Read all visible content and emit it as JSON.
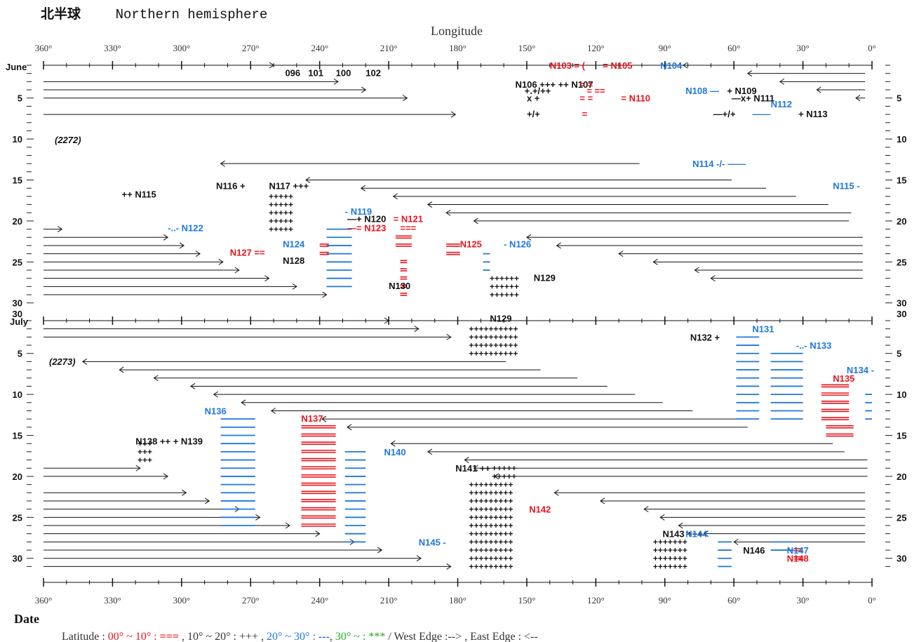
{
  "header": {
    "title_cjk": "北半球",
    "title_en": "Northern hemisphere"
  },
  "axes": {
    "longitude_title": "Longitude",
    "date_title": "Date",
    "lon_ticks": [
      "360°",
      "330°",
      "300°",
      "270°",
      "240°",
      "210°",
      "180°",
      "150°",
      "120°",
      "90°",
      "60°",
      "30°",
      "0°"
    ],
    "day_ticks": [
      "5",
      "10",
      "15",
      "20",
      "25",
      "30"
    ],
    "month_june": "June",
    "month_july": "July",
    "june_30": "30"
  },
  "year_labels": [
    "(2272)",
    "(2273)"
  ],
  "legend": {
    "text": "Latitude :  00° ~ 10°  : ===  ,   10° ~ 20°  : +++ ,   20° ~ 30°  : ---,  30° ~  : ***     /     West Edge :-->  , East Edge : <--",
    "red": "#e8141e",
    "blue": "#1e78dc",
    "green": "#22aa22"
  },
  "colors": {
    "red": "#e8141e",
    "blue": "#1e78dc",
    "black": "#111111",
    "green": "#22aa22"
  },
  "chart_data": {
    "type": "diagram",
    "x_axis": {
      "name": "Longitude",
      "range": [
        360,
        0
      ],
      "step": 30
    },
    "y_axis": {
      "name": "Date",
      "periods": [
        "June 2272",
        "July 2273"
      ]
    },
    "june_arrows_east": [
      {
        "day": 1,
        "from": 360,
        "to": 260
      },
      {
        "day": 3,
        "from": 360,
        "to": 232
      },
      {
        "day": 4,
        "from": 360,
        "to": 220
      },
      {
        "day": 5,
        "from": 360,
        "to": 202
      },
      {
        "day": 7,
        "from": 360,
        "to": 181
      },
      {
        "day": 22,
        "from": 360,
        "to": 306
      },
      {
        "day": 23,
        "from": 360,
        "to": 299
      },
      {
        "day": 24,
        "from": 360,
        "to": 292
      },
      {
        "day": 25,
        "from": 360,
        "to": 282
      },
      {
        "day": 26,
        "from": 360,
        "to": 275
      },
      {
        "day": 27,
        "from": 360,
        "to": 262
      },
      {
        "day": 28,
        "from": 360,
        "to": 250
      },
      {
        "day": 29,
        "from": 360,
        "to": 237
      }
    ],
    "june_arrows_west": [
      {
        "day": 1,
        "from": 3,
        "to": 82
      },
      {
        "day": 2,
        "from": 3,
        "to": 54
      },
      {
        "day": 3,
        "from": 3,
        "to": 40
      },
      {
        "day": 4,
        "from": 3,
        "to": 24
      },
      {
        "day": 5,
        "from": 3,
        "to": 7
      },
      {
        "day": 13,
        "from": 101,
        "to": 283
      },
      {
        "day": 15,
        "from": 61,
        "to": 246
      },
      {
        "day": 16,
        "from": 46,
        "to": 222
      },
      {
        "day": 17,
        "from": 33,
        "to": 208
      },
      {
        "day": 18,
        "from": 19,
        "to": 193
      },
      {
        "day": 19,
        "from": 9,
        "to": 185
      },
      {
        "day": 20,
        "from": 10,
        "to": 173
      },
      {
        "day": 22,
        "from": 4,
        "to": 150
      },
      {
        "day": 23,
        "from": 4,
        "to": 137
      },
      {
        "day": 24,
        "from": 4,
        "to": 110
      },
      {
        "day": 25,
        "from": 4,
        "to": 95
      },
      {
        "day": 26,
        "from": 4,
        "to": 77
      },
      {
        "day": 27,
        "from": 4,
        "to": 70
      }
    ],
    "july_arrows_east": [
      {
        "day": 1,
        "from": 360,
        "to": 210
      },
      {
        "day": 2,
        "from": 360,
        "to": 197
      },
      {
        "day": 3,
        "from": 360,
        "to": 183
      },
      {
        "day": 19,
        "from": 360,
        "to": 318
      },
      {
        "day": 20,
        "from": 360,
        "to": 306
      },
      {
        "day": 22,
        "from": 360,
        "to": 298
      },
      {
        "day": 23,
        "from": 360,
        "to": 288
      },
      {
        "day": 24,
        "from": 360,
        "to": 275
      },
      {
        "day": 25,
        "from": 360,
        "to": 266
      },
      {
        "day": 26,
        "from": 360,
        "to": 253
      },
      {
        "day": 27,
        "from": 360,
        "to": 240
      },
      {
        "day": 28,
        "from": 360,
        "to": 225
      },
      {
        "day": 29,
        "from": 360,
        "to": 213
      },
      {
        "day": 30,
        "from": 360,
        "to": 196
      },
      {
        "day": 31,
        "from": 360,
        "to": 183
      }
    ],
    "july_arrows_west": [
      {
        "day": 6,
        "from": 159,
        "to": 343
      },
      {
        "day": 7,
        "from": 144,
        "to": 327
      },
      {
        "day": 8,
        "from": 128,
        "to": 312
      },
      {
        "day": 9,
        "from": 115,
        "to": 296
      },
      {
        "day": 10,
        "from": 103,
        "to": 286
      },
      {
        "day": 11,
        "from": 91,
        "to": 274
      },
      {
        "day": 12,
        "from": 78,
        "to": 261
      },
      {
        "day": 13,
        "from": 52,
        "to": 239
      },
      {
        "day": 14,
        "from": 54,
        "to": 228
      },
      {
        "day": 16,
        "from": 17,
        "to": 209
      },
      {
        "day": 17,
        "from": 12,
        "to": 193
      },
      {
        "day": 18,
        "from": 2,
        "to": 177
      },
      {
        "day": 19,
        "from": 2,
        "to": 173
      },
      {
        "day": 20,
        "from": 2,
        "to": 164
      },
      {
        "day": 22,
        "from": 3,
        "to": 138
      },
      {
        "day": 23,
        "from": 3,
        "to": 118
      },
      {
        "day": 24,
        "from": 3,
        "to": 99
      },
      {
        "day": 25,
        "from": 3,
        "to": 92
      },
      {
        "day": 26,
        "from": 3,
        "to": 84
      },
      {
        "day": 27,
        "from": 3,
        "to": 73
      },
      {
        "day": 28,
        "from": 3,
        "to": 60
      }
    ],
    "labels": [
      {
        "text": "096",
        "lon": 255,
        "day": 1.9,
        "panel": "june",
        "color": "black"
      },
      {
        "text": "101",
        "lon": 245,
        "day": 1.9,
        "panel": "june",
        "color": "black"
      },
      {
        "text": "100",
        "lon": 233,
        "day": 1.9,
        "panel": "june",
        "color": "black"
      },
      {
        "text": "102",
        "lon": 220,
        "day": 1.9,
        "panel": "june",
        "color": "black"
      },
      {
        "text": "N103 = (",
        "lon": 140,
        "day": 1,
        "panel": "june",
        "color": "red"
      },
      {
        "text": "= N105",
        "lon": 117,
        "day": 1,
        "panel": "june",
        "color": "red"
      },
      {
        "text": "N104",
        "lon": 92,
        "day": 1,
        "panel": "june",
        "color": "blue"
      },
      {
        "text": "N106 +++ ++ N107",
        "lon": 155,
        "day": 3.3,
        "panel": "june",
        "color": "black"
      },
      {
        "text": "= =",
        "lon": 127,
        "day": 3.3,
        "panel": "june",
        "color": "red"
      },
      {
        "text": "+.+/++",
        "lon": 151,
        "day": 4.1,
        "panel": "june",
        "color": "black"
      },
      {
        "text": "= ==",
        "lon": 124,
        "day": 4.1,
        "panel": "june",
        "color": "red"
      },
      {
        "text": "x +",
        "lon": 150,
        "day": 5,
        "panel": "june",
        "color": "black"
      },
      {
        "text": "= =",
        "lon": 127,
        "day": 5,
        "panel": "june",
        "color": "red"
      },
      {
        "text": "= N110",
        "lon": 109,
        "day": 5,
        "panel": "june",
        "color": "red"
      },
      {
        "text": "+/+",
        "lon": 150,
        "day": 6.9,
        "panel": "june",
        "color": "black"
      },
      {
        "text": "=",
        "lon": 126,
        "day": 6.9,
        "panel": "june",
        "color": "red"
      },
      {
        "text": "N108 —",
        "lon": 81,
        "day": 4.1,
        "panel": "june",
        "color": "blue"
      },
      {
        "text": "+ N109",
        "lon": 63,
        "day": 4.1,
        "panel": "june",
        "color": "black"
      },
      {
        "text": "—x+ N111",
        "lon": 61,
        "day": 5,
        "panel": "june",
        "color": "black"
      },
      {
        "text": "N112",
        "lon": 44,
        "day": 5.7,
        "panel": "june",
        "color": "blue"
      },
      {
        "text": "—+/+",
        "lon": 69,
        "day": 6.9,
        "panel": "june",
        "color": "black"
      },
      {
        "text": "——",
        "lon": 52,
        "day": 6.9,
        "panel": "june",
        "color": "blue"
      },
      {
        "text": "+ N113",
        "lon": 32,
        "day": 6.9,
        "panel": "june",
        "color": "black"
      },
      {
        "text": "N114 -/-  ——",
        "lon": 78,
        "day": 13,
        "panel": "june",
        "color": "blue"
      },
      {
        "text": "N115 -",
        "lon": 17,
        "day": 15.7,
        "panel": "june",
        "color": "blue"
      },
      {
        "text": "++ N115",
        "lon": 326,
        "day": 16.7,
        "panel": "june",
        "color": "black"
      },
      {
        "text": "N116 +",
        "lon": 285,
        "day": 15.7,
        "panel": "june",
        "color": "black"
      },
      {
        "text": "N117 +++",
        "lon": 262,
        "day": 15.7,
        "panel": "june",
        "color": "black"
      },
      {
        "text": "- N119",
        "lon": 229,
        "day": 18.8,
        "panel": "june",
        "color": "blue"
      },
      {
        "text": "—+ N120",
        "lon": 228,
        "day": 19.7,
        "panel": "june",
        "color": "black"
      },
      {
        "text": "= N121",
        "lon": 208,
        "day": 19.7,
        "panel": "june",
        "color": "red"
      },
      {
        "text": "—= N123",
        "lon": 228,
        "day": 20.8,
        "panel": "june",
        "color": "red"
      },
      {
        "text": "===",
        "lon": 205,
        "day": 20.8,
        "panel": "june",
        "color": "red"
      },
      {
        "text": "-..- N122",
        "lon": 306,
        "day": 20.8,
        "panel": "june",
        "color": "blue"
      },
      {
        "text": "N124",
        "lon": 256,
        "day": 22.8,
        "panel": "june",
        "color": "blue"
      },
      {
        "text": "N125",
        "lon": 179,
        "day": 22.8,
        "panel": "june",
        "color": "red"
      },
      {
        "text": "- N126",
        "lon": 160,
        "day": 22.8,
        "panel": "june",
        "color": "blue"
      },
      {
        "text": "N127 ==",
        "lon": 279,
        "day": 23.8,
        "panel": "june",
        "color": "red"
      },
      {
        "text": "N128",
        "lon": 256,
        "day": 24.8,
        "panel": "june",
        "color": "black"
      },
      {
        "text": "N129",
        "lon": 147,
        "day": 26.9,
        "panel": "june",
        "color": "black"
      },
      {
        "text": "N130",
        "lon": 210,
        "day": 27.9,
        "panel": "june",
        "color": "black"
      },
      {
        "text": "N129",
        "lon": 166,
        "day": 0.7,
        "panel": "july",
        "color": "black"
      },
      {
        "text": "N131",
        "lon": 52,
        "day": 2,
        "panel": "july",
        "color": "blue"
      },
      {
        "text": "N132 +",
        "lon": 79,
        "day": 3,
        "panel": "july",
        "color": "black"
      },
      {
        "text": "-..- N133",
        "lon": 33,
        "day": 4,
        "panel": "july",
        "color": "blue"
      },
      {
        "text": "N134 -",
        "lon": 11,
        "day": 7,
        "panel": "july",
        "color": "blue"
      },
      {
        "text": "N135",
        "lon": 17,
        "day": 8,
        "panel": "july",
        "color": "red"
      },
      {
        "text": "N136",
        "lon": 290,
        "day": 12,
        "panel": "july",
        "color": "blue"
      },
      {
        "text": "N137",
        "lon": 248,
        "day": 12.9,
        "panel": "july",
        "color": "red"
      },
      {
        "text": "N138 ++  + N139",
        "lon": 320,
        "day": 15.7,
        "panel": "july",
        "color": "black"
      },
      {
        "text": "N140",
        "lon": 212,
        "day": 17,
        "panel": "july",
        "color": "blue"
      },
      {
        "text": "N141 ++",
        "lon": 181,
        "day": 19,
        "panel": "july",
        "color": "black"
      },
      {
        "text": "N142",
        "lon": 149,
        "day": 24,
        "panel": "july",
        "color": "red"
      },
      {
        "text": "N143 +++",
        "lon": 91,
        "day": 27,
        "panel": "july",
        "color": "black"
      },
      {
        "text": "N144",
        "lon": 81,
        "day": 27,
        "panel": "july",
        "color": "blue"
      },
      {
        "text": "N145 -",
        "lon": 197,
        "day": 28,
        "panel": "july",
        "color": "blue"
      },
      {
        "text": "N146",
        "lon": 56,
        "day": 29,
        "panel": "july",
        "color": "black"
      },
      {
        "text": "N147",
        "lon": 37,
        "day": 29,
        "panel": "july",
        "color": "blue"
      },
      {
        "text": "N148",
        "lon": 37,
        "day": 30,
        "panel": "july",
        "color": "red"
      }
    ]
  }
}
